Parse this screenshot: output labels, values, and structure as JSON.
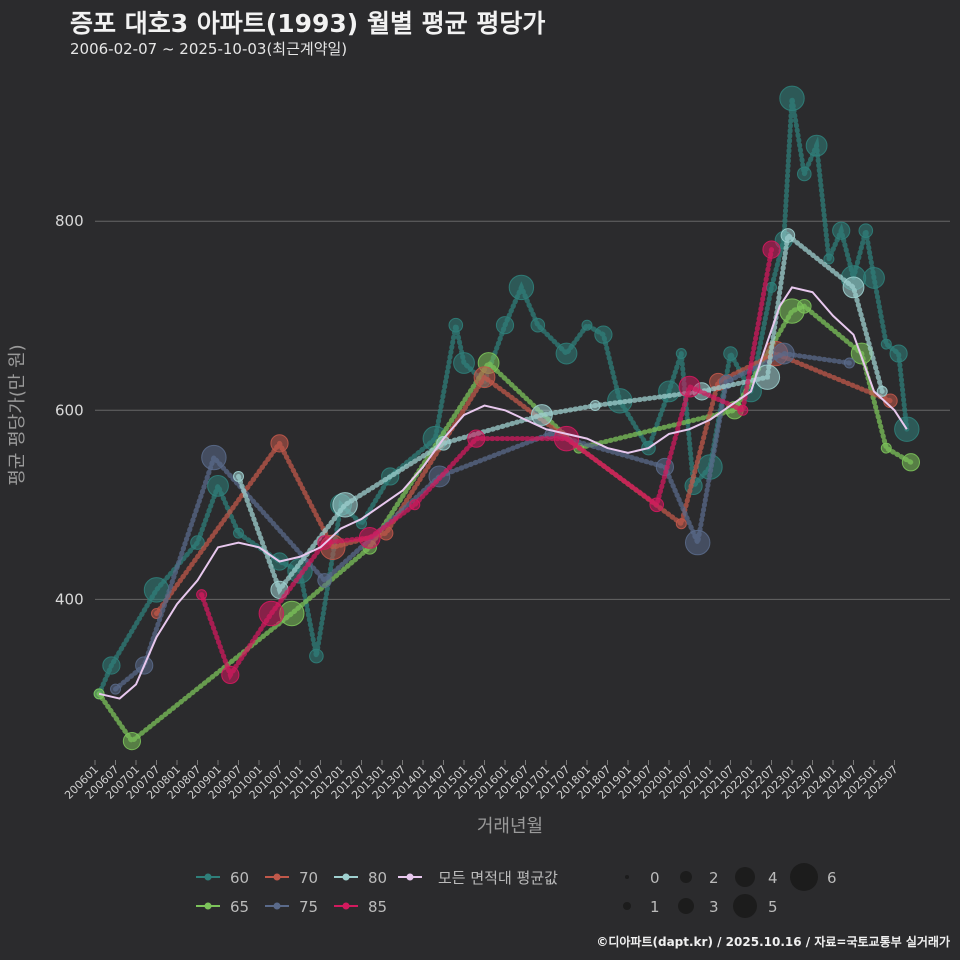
{
  "chart_data": {
    "type": "scatter",
    "title": "증포 대호3 아파트(1993) 월별 평균 평당가",
    "subtitle": "2006-02-07 ~ 2025-10-03(최근계약일)",
    "xlabel": "거래년월",
    "ylabel": "평균 평당가(만 원)",
    "ylim": [
      230,
      960
    ],
    "yticks": [
      400,
      600,
      800
    ],
    "xticks": [
      "200601",
      "200607",
      "200701",
      "200707",
      "200801",
      "200807",
      "200901",
      "200907",
      "201001",
      "201007",
      "201101",
      "201107",
      "201201",
      "201207",
      "201301",
      "201307",
      "201401",
      "201407",
      "201501",
      "201507",
      "201601",
      "201607",
      "201701",
      "201707",
      "201801",
      "201807",
      "201901",
      "201907",
      "202001",
      "202007",
      "202101",
      "202107",
      "202201",
      "202207",
      "202301",
      "202307",
      "202401",
      "202407",
      "202501",
      "202507"
    ],
    "series": [
      {
        "name": "60",
        "color": "#2f7f7a",
        "points": [
          [
            2006.1,
            300
          ],
          [
            2006.4,
            330
          ],
          [
            2007.5,
            410
          ],
          [
            2008.5,
            460
          ],
          [
            2009.0,
            520
          ],
          [
            2009.5,
            470
          ],
          [
            2010.5,
            440
          ],
          [
            2011.0,
            430
          ],
          [
            2011.4,
            340
          ],
          [
            2012.0,
            500
          ],
          [
            2012.5,
            480
          ],
          [
            2013.2,
            530
          ],
          [
            2014.3,
            570
          ],
          [
            2014.8,
            690
          ],
          [
            2015.0,
            650
          ],
          [
            2015.5,
            630
          ],
          [
            2016.0,
            690
          ],
          [
            2016.4,
            730
          ],
          [
            2016.8,
            690
          ],
          [
            2017.5,
            660
          ],
          [
            2018.0,
            690
          ],
          [
            2018.4,
            680
          ],
          [
            2018.8,
            610
          ],
          [
            2019.5,
            560
          ],
          [
            2020.0,
            620
          ],
          [
            2020.3,
            660
          ],
          [
            2020.6,
            520
          ],
          [
            2021.0,
            540
          ],
          [
            2021.5,
            660
          ],
          [
            2022.0,
            620
          ],
          [
            2022.5,
            730
          ],
          [
            2022.8,
            780
          ],
          [
            2023.0,
            930
          ],
          [
            2023.3,
            850
          ],
          [
            2023.6,
            880
          ],
          [
            2023.9,
            760
          ],
          [
            2024.2,
            790
          ],
          [
            2024.5,
            740
          ],
          [
            2024.8,
            790
          ],
          [
            2025.0,
            740
          ],
          [
            2025.3,
            670
          ],
          [
            2025.6,
            660
          ],
          [
            2025.8,
            580
          ]
        ]
      },
      {
        "name": "65",
        "color": "#7cc35a",
        "points": [
          [
            2006.1,
            300
          ],
          [
            2006.9,
            250
          ],
          [
            2010.8,
            385
          ],
          [
            2012.7,
            455
          ],
          [
            2015.6,
            650
          ],
          [
            2017.8,
            560
          ],
          [
            2021.6,
            600
          ],
          [
            2023.0,
            705
          ],
          [
            2023.3,
            710
          ],
          [
            2024.7,
            660
          ],
          [
            2025.3,
            560
          ],
          [
            2025.9,
            545
          ]
        ]
      },
      {
        "name": "70",
        "color": "#c0584a",
        "points": [
          [
            2007.5,
            385
          ],
          [
            2010.5,
            565
          ],
          [
            2011.8,
            455
          ],
          [
            2013.1,
            470
          ],
          [
            2015.5,
            635
          ],
          [
            2020.3,
            480
          ],
          [
            2021.2,
            630
          ],
          [
            2022.6,
            660
          ],
          [
            2025.4,
            610
          ]
        ]
      },
      {
        "name": "75",
        "color": "#5a6a8a",
        "points": [
          [
            2006.5,
            305
          ],
          [
            2007.2,
            330
          ],
          [
            2008.9,
            550
          ],
          [
            2011.6,
            420
          ],
          [
            2014.4,
            530
          ],
          [
            2017.1,
            575
          ],
          [
            2019.9,
            540
          ],
          [
            2020.7,
            460
          ],
          [
            2021.4,
            630
          ],
          [
            2022.8,
            660
          ],
          [
            2024.4,
            650
          ]
        ]
      },
      {
        "name": "80",
        "color": "#9fd0cf",
        "points": [
          [
            2009.5,
            530
          ],
          [
            2010.5,
            410
          ],
          [
            2012.1,
            500
          ],
          [
            2014.5,
            565
          ],
          [
            2016.9,
            595
          ],
          [
            2018.2,
            605
          ],
          [
            2020.8,
            620
          ],
          [
            2022.4,
            635
          ],
          [
            2022.9,
            785
          ],
          [
            2024.5,
            730
          ],
          [
            2025.2,
            620
          ]
        ]
      },
      {
        "name": "85",
        "color": "#d21a5e",
        "points": [
          [
            2008.6,
            405
          ],
          [
            2009.3,
            320
          ],
          [
            2010.3,
            385
          ],
          [
            2011.6,
            460
          ],
          [
            2012.7,
            465
          ],
          [
            2013.8,
            500
          ],
          [
            2015.3,
            570
          ],
          [
            2017.5,
            570
          ],
          [
            2019.7,
            500
          ],
          [
            2020.5,
            625
          ],
          [
            2021.8,
            600
          ],
          [
            2022.5,
            770
          ]
        ]
      }
    ],
    "average_line": {
      "name": "모든 면적대 평균값",
      "color": "#e8c8ee",
      "points": [
        [
          2006.1,
          300
        ],
        [
          2006.6,
          295
        ],
        [
          2007.0,
          310
        ],
        [
          2007.5,
          360
        ],
        [
          2008.0,
          395
        ],
        [
          2008.5,
          420
        ],
        [
          2009.0,
          455
        ],
        [
          2009.5,
          460
        ],
        [
          2010.0,
          455
        ],
        [
          2010.5,
          440
        ],
        [
          2011.0,
          445
        ],
        [
          2011.5,
          455
        ],
        [
          2012.0,
          475
        ],
        [
          2012.5,
          485
        ],
        [
          2013.0,
          500
        ],
        [
          2013.5,
          515
        ],
        [
          2014.0,
          540
        ],
        [
          2014.5,
          570
        ],
        [
          2015.0,
          595
        ],
        [
          2015.5,
          605
        ],
        [
          2016.0,
          600
        ],
        [
          2016.5,
          590
        ],
        [
          2017.0,
          580
        ],
        [
          2017.5,
          575
        ],
        [
          2018.0,
          570
        ],
        [
          2018.5,
          560
        ],
        [
          2019.0,
          555
        ],
        [
          2019.5,
          560
        ],
        [
          2020.0,
          575
        ],
        [
          2020.5,
          580
        ],
        [
          2021.0,
          590
        ],
        [
          2021.5,
          605
        ],
        [
          2022.0,
          620
        ],
        [
          2022.3,
          660
        ],
        [
          2022.7,
          710
        ],
        [
          2023.0,
          730
        ],
        [
          2023.5,
          725
        ],
        [
          2024.0,
          700
        ],
        [
          2024.5,
          680
        ],
        [
          2025.0,
          620
        ],
        [
          2025.5,
          600
        ],
        [
          2025.8,
          580
        ]
      ]
    },
    "legend_series": [
      "60",
      "65",
      "70",
      "75",
      "80",
      "85"
    ],
    "legend_avg_label": "모든 면적대 평균값",
    "legend_sizes": [
      "0",
      "1",
      "2",
      "3",
      "4",
      "5",
      "6"
    ],
    "caption": "©디아파트(dapt.kr) / 2025.10.16 / 자료=국토교통부 실거래가"
  }
}
